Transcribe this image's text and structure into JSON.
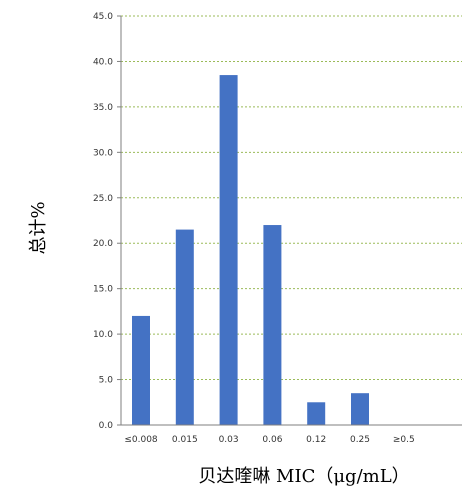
{
  "chart_data": {
    "type": "bar",
    "categories": [
      "≤0.008",
      "0.015",
      "0.03",
      "0.06",
      "0.12",
      "0.25",
      "≥0.5"
    ],
    "values": [
      12.0,
      21.5,
      38.5,
      22.0,
      2.5,
      3.5,
      0.0
    ],
    "xlabel": "贝达喹啉 MIC（μg/mL）",
    "ylabel": "总计%",
    "ylim": [
      0,
      45
    ],
    "yticks": [
      "0.0",
      "5.0",
      "10.0",
      "15.0",
      "20.0",
      "25.0",
      "30.0",
      "35.0",
      "40.0",
      "45.0"
    ],
    "grid": true,
    "legend": "none",
    "colors": {
      "bar": "#4472C4",
      "grid": "#9BBB59",
      "axis": "#7f7f7f"
    }
  }
}
